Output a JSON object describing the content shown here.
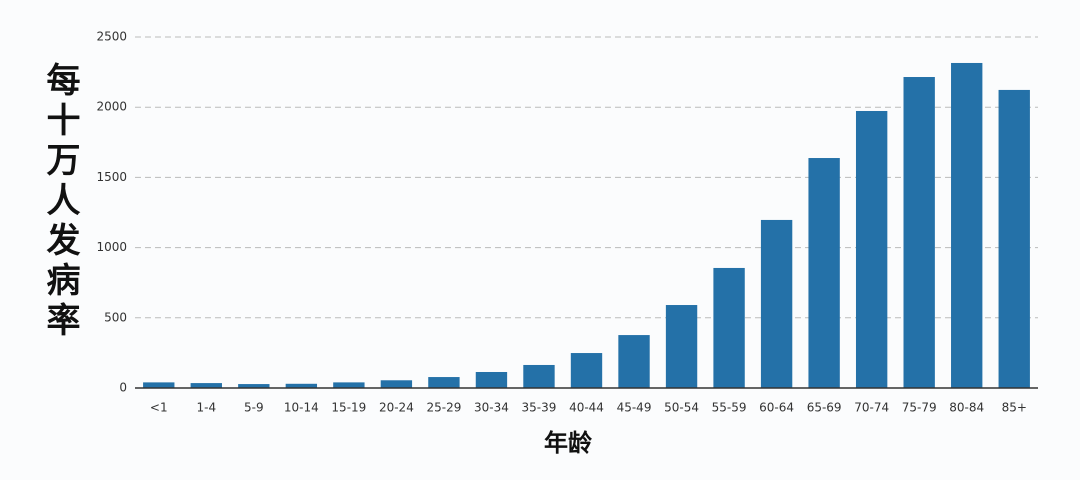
{
  "chart_data": {
    "type": "bar",
    "x_label": "年龄",
    "y_label": "每十万人发病率",
    "categories": [
      "<1",
      "1-4",
      "5-9",
      "10-14",
      "15-19",
      "20-24",
      "25-29",
      "30-34",
      "35-39",
      "40-44",
      "45-49",
      "50-54",
      "55-59",
      "60-64",
      "65-69",
      "70-74",
      "75-79",
      "80-84",
      "85+"
    ],
    "values": [
      40,
      35,
      28,
      30,
      40,
      55,
      78,
      114,
      164,
      249,
      377,
      591,
      855,
      1197,
      1638,
      1973,
      2215,
      2315,
      2123
    ],
    "color": "#2471a8",
    "ylim": [
      0,
      2500
    ],
    "yticks": [
      0,
      500,
      1000,
      1500,
      2000,
      2500
    ],
    "grid": true
  }
}
